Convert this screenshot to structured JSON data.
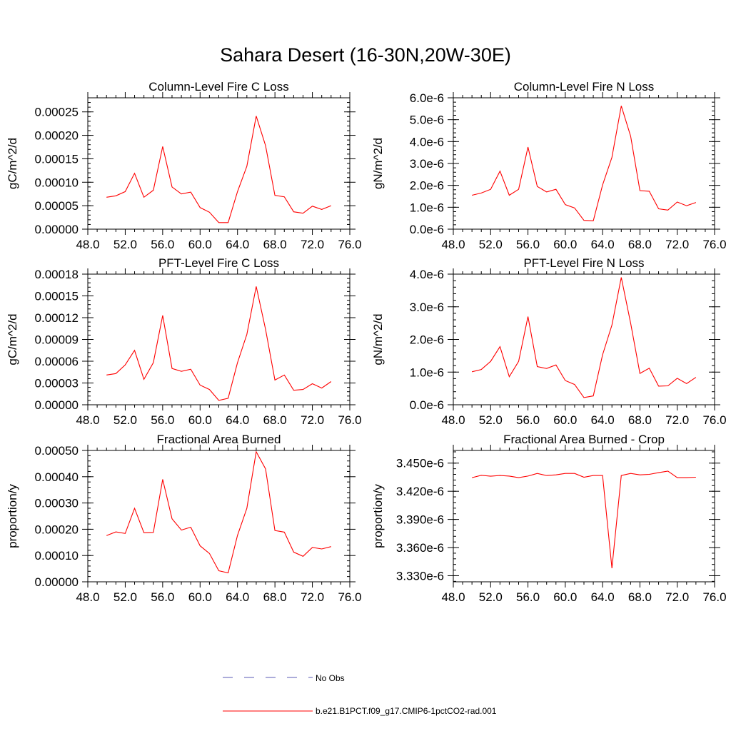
{
  "title": "Sahara Desert (16-30N,20W-30E)",
  "legend": {
    "items": [
      {
        "label": "No Obs",
        "style": "dashed",
        "color": "#5a5ab4"
      },
      {
        "label": "b.e21.B1PCT.f09_g17.CMIP6-1pctCO2-rad.001",
        "style": "solid",
        "color": "#ff0000"
      }
    ]
  },
  "chart_data": [
    {
      "type": "line",
      "title": "Column-Level Fire C Loss",
      "xlabel": "",
      "ylabel": "gC/m^2/d",
      "xlim": [
        48,
        76
      ],
      "ylim": [
        0,
        0.00028
      ],
      "xticks": [
        "48.0",
        "52.0",
        "56.0",
        "60.0",
        "64.0",
        "68.0",
        "72.0",
        "76.0"
      ],
      "yticks": [
        {
          "v": 0,
          "label": "0.00000"
        },
        {
          "v": 5e-05,
          "label": "0.00005"
        },
        {
          "v": 0.0001,
          "label": "0.00010"
        },
        {
          "v": 0.00015,
          "label": "0.00015"
        },
        {
          "v": 0.0002,
          "label": "0.00020"
        },
        {
          "v": 0.00025,
          "label": "0.00025"
        }
      ],
      "x": [
        50,
        51,
        52,
        53,
        54,
        55,
        56,
        57,
        58,
        59,
        60,
        61,
        62,
        63,
        64,
        65,
        66,
        67,
        68,
        69,
        70,
        71,
        72,
        73,
        74
      ],
      "series": [
        {
          "name": "b.e21.B1PCT.f09_g17.CMIP6-1pctCO2-rad.001",
          "color": "#ff0000",
          "values": [
            6.8e-05,
            7.1e-05,
            8e-05,
            0.000119,
            6.8e-05,
            8.3e-05,
            0.000176,
            9e-05,
            7.5e-05,
            7.9e-05,
            4.6e-05,
            3.6e-05,
            1.4e-05,
            1.4e-05,
            8e-05,
            0.000134,
            0.000241,
            0.000178,
            7.2e-05,
            6.9e-05,
            3.7e-05,
            3.4e-05,
            4.9e-05,
            4.2e-05,
            5e-05
          ]
        }
      ]
    },
    {
      "type": "line",
      "title": "Column-Level Fire N Loss",
      "xlabel": "",
      "ylabel": "gN/m^2/d",
      "xlim": [
        48,
        76
      ],
      "ylim": [
        0,
        6e-06
      ],
      "xticks": [
        "48.0",
        "52.0",
        "56.0",
        "60.0",
        "64.0",
        "68.0",
        "72.0",
        "76.0"
      ],
      "yticks": [
        {
          "v": 0,
          "label": "0.0e-6"
        },
        {
          "v": 1e-06,
          "label": "1.0e-6"
        },
        {
          "v": 2e-06,
          "label": "2.0e-6"
        },
        {
          "v": 3e-06,
          "label": "3.0e-6"
        },
        {
          "v": 4e-06,
          "label": "4.0e-6"
        },
        {
          "v": 5e-06,
          "label": "5.0e-6"
        },
        {
          "v": 6e-06,
          "label": "6.0e-6"
        }
      ],
      "x": [
        50,
        51,
        52,
        53,
        54,
        55,
        56,
        57,
        58,
        59,
        60,
        61,
        62,
        63,
        64,
        65,
        66,
        67,
        68,
        69,
        70,
        71,
        72,
        73,
        74
      ],
      "series": [
        {
          "name": "b.e21.B1PCT.f09_g17.CMIP6-1pctCO2-rad.001",
          "color": "#ff0000",
          "values": [
            1.55e-06,
            1.65e-06,
            1.82e-06,
            2.65e-06,
            1.55e-06,
            1.82e-06,
            3.75e-06,
            1.95e-06,
            1.7e-06,
            1.82e-06,
            1.12e-06,
            9.7e-07,
            4e-07,
            3.8e-07,
            2.02e-06,
            3.28e-06,
            5.63e-06,
            4.25e-06,
            1.76e-06,
            1.73e-06,
            9.3e-07,
            8.7e-07,
            1.24e-06,
            1.07e-06,
            1.22e-06
          ]
        }
      ]
    },
    {
      "type": "line",
      "title": "PFT-Level Fire C Loss",
      "xlabel": "",
      "ylabel": "gC/m^2/d",
      "xlim": [
        48,
        76
      ],
      "ylim": [
        0,
        0.00018
      ],
      "xticks": [
        "48.0",
        "52.0",
        "56.0",
        "60.0",
        "64.0",
        "68.0",
        "72.0",
        "76.0"
      ],
      "yticks": [
        {
          "v": 0,
          "label": "0.00000"
        },
        {
          "v": 3e-05,
          "label": "0.00003"
        },
        {
          "v": 6e-05,
          "label": "0.00006"
        },
        {
          "v": 9e-05,
          "label": "0.00009"
        },
        {
          "v": 0.00012,
          "label": "0.00012"
        },
        {
          "v": 0.00015,
          "label": "0.00015"
        },
        {
          "v": 0.00018,
          "label": "0.00018"
        }
      ],
      "x": [
        50,
        51,
        52,
        53,
        54,
        55,
        56,
        57,
        58,
        59,
        60,
        61,
        62,
        63,
        64,
        65,
        66,
        67,
        68,
        69,
        70,
        71,
        72,
        73,
        74
      ],
      "series": [
        {
          "name": "b.e21.B1PCT.f09_g17.CMIP6-1pctCO2-rad.001",
          "color": "#ff0000",
          "values": [
            4.1e-05,
            4.3e-05,
            5.5e-05,
            7.5e-05,
            3.5e-05,
            5.8e-05,
            0.000123,
            5e-05,
            4.6e-05,
            4.9e-05,
            2.7e-05,
            2.1e-05,
            6e-06,
            9e-06,
            5.8e-05,
            9.7e-05,
            0.000163,
            0.000104,
            3.4e-05,
            4.1e-05,
            2e-05,
            2.1e-05,
            2.9e-05,
            2.3e-05,
            3.2e-05
          ]
        }
      ]
    },
    {
      "type": "line",
      "title": "PFT-Level Fire N Loss",
      "xlabel": "",
      "ylabel": "gN/m^2/d",
      "xlim": [
        48,
        76
      ],
      "ylim": [
        0,
        4e-06
      ],
      "xticks": [
        "48.0",
        "52.0",
        "56.0",
        "60.0",
        "64.0",
        "68.0",
        "72.0",
        "76.0"
      ],
      "yticks": [
        {
          "v": 0,
          "label": "0.0e-6"
        },
        {
          "v": 1e-06,
          "label": "1.0e-6"
        },
        {
          "v": 2e-06,
          "label": "2.0e-6"
        },
        {
          "v": 3e-06,
          "label": "3.0e-6"
        },
        {
          "v": 4e-06,
          "label": "4.0e-6"
        }
      ],
      "x": [
        50,
        51,
        52,
        53,
        54,
        55,
        56,
        57,
        58,
        59,
        60,
        61,
        62,
        63,
        64,
        65,
        66,
        67,
        68,
        69,
        70,
        71,
        72,
        73,
        74
      ],
      "series": [
        {
          "name": "b.e21.B1PCT.f09_g17.CMIP6-1pctCO2-rad.001",
          "color": "#ff0000",
          "values": [
            1.01e-06,
            1.08e-06,
            1.33e-06,
            1.78e-06,
            8.6e-07,
            1.33e-06,
            2.7e-06,
            1.17e-06,
            1.11e-06,
            1.22e-06,
            7.4e-07,
            6.2e-07,
            2.2e-07,
            2.7e-07,
            1.53e-06,
            2.44e-06,
            3.9e-06,
            2.5e-06,
            9.6e-07,
            1.12e-06,
            5.7e-07,
            5.8e-07,
            8.1e-07,
            6.5e-07,
            8.4e-07
          ]
        }
      ]
    },
    {
      "type": "line",
      "title": "Fractional Area Burned",
      "xlabel": "",
      "ylabel": "proportion/y",
      "xlim": [
        48,
        76
      ],
      "ylim": [
        0,
        0.0005
      ],
      "xticks": [
        "48.0",
        "52.0",
        "56.0",
        "60.0",
        "64.0",
        "68.0",
        "72.0",
        "76.0"
      ],
      "yticks": [
        {
          "v": 0,
          "label": "0.00000"
        },
        {
          "v": 0.0001,
          "label": "0.00010"
        },
        {
          "v": 0.0002,
          "label": "0.00020"
        },
        {
          "v": 0.0003,
          "label": "0.00030"
        },
        {
          "v": 0.0004,
          "label": "0.00040"
        },
        {
          "v": 0.0005,
          "label": "0.00050"
        }
      ],
      "x": [
        50,
        51,
        52,
        53,
        54,
        55,
        56,
        57,
        58,
        59,
        60,
        61,
        62,
        63,
        64,
        65,
        66,
        67,
        68,
        69,
        70,
        71,
        72,
        73,
        74
      ],
      "series": [
        {
          "name": "b.e21.B1PCT.f09_g17.CMIP6-1pctCO2-rad.001",
          "color": "#ff0000",
          "values": [
            0.000176,
            0.00019,
            0.000184,
            0.00028,
            0.000187,
            0.000188,
            0.00039,
            0.00024,
            0.000197,
            0.000208,
            0.000137,
            0.000108,
            4.2e-05,
            3.4e-05,
            0.000177,
            0.00028,
            0.000495,
            0.00043,
            0.000195,
            0.000189,
            0.000113,
            9.7e-05,
            0.000131,
            0.000125,
            0.000134
          ]
        }
      ]
    },
    {
      "type": "line",
      "title": "Fractional Area Burned - Crop",
      "xlabel": "",
      "ylabel": "proportion/y",
      "xlim": [
        48,
        76
      ],
      "ylim": [
        3.3235e-06,
        3.4635e-06
      ],
      "xticks": [
        "48.0",
        "52.0",
        "56.0",
        "60.0",
        "64.0",
        "68.0",
        "72.0",
        "76.0"
      ],
      "yticks": [
        {
          "v": 3.33e-06,
          "label": "3.330e-6"
        },
        {
          "v": 3.36e-06,
          "label": "3.360e-6"
        },
        {
          "v": 3.39e-06,
          "label": "3.390e-6"
        },
        {
          "v": 3.42e-06,
          "label": "3.420e-6"
        },
        {
          "v": 3.45e-06,
          "label": "3.450e-6"
        }
      ],
      "x": [
        50,
        51,
        52,
        53,
        54,
        55,
        56,
        57,
        58,
        59,
        60,
        61,
        62,
        63,
        64,
        65,
        66,
        67,
        68,
        69,
        70,
        71,
        72,
        73,
        74
      ],
      "series": [
        {
          "name": "b.e21.B1PCT.f09_g17.CMIP6-1pctCO2-rad.001",
          "color": "#ff0000",
          "values": [
            3.4345e-06,
            3.437e-06,
            3.436e-06,
            3.4368e-06,
            3.4362e-06,
            3.4345e-06,
            3.4362e-06,
            3.439e-06,
            3.4368e-06,
            3.4375e-06,
            3.439e-06,
            3.439e-06,
            3.435e-06,
            3.4368e-06,
            3.4368e-06,
            3.338e-06,
            3.4368e-06,
            3.439e-06,
            3.4375e-06,
            3.438e-06,
            3.4398e-06,
            3.4415e-06,
            3.4345e-06,
            3.4345e-06,
            3.435e-06
          ]
        }
      ]
    }
  ]
}
